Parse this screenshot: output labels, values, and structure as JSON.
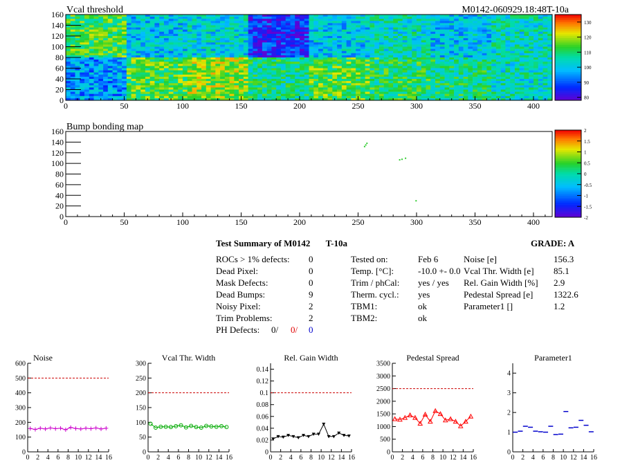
{
  "header": {
    "run_label": "M0142-060929.18:48T-10a"
  },
  "summary": {
    "title": "Test Summary of M0142",
    "temp_label": "T-10a",
    "grade": "GRADE:  A",
    "left": [
      {
        "label": "ROCs > 1% defects:",
        "value": "0"
      },
      {
        "label": "Dead Pixel:",
        "value": "0"
      },
      {
        "label": "Mask Defects:",
        "value": "0"
      },
      {
        "label": "Dead Bumps:",
        "value": "9"
      },
      {
        "label": "Noisy Pixel:",
        "value": "2"
      },
      {
        "label": "Trim Problems:",
        "value": "2"
      }
    ],
    "ph_defects": {
      "label": "PH Defects:",
      "v1": "0/",
      "v2": "0/",
      "v3": "0"
    },
    "middle": [
      {
        "label": "Tested on:",
        "value": "Feb 6"
      },
      {
        "label": "Temp. [°C]:",
        "value": "-10.0 +- 0.0"
      },
      {
        "label": "Trim / phCal:",
        "value": "yes / yes"
      },
      {
        "label": "Therm. cycl.:",
        "value": "yes"
      },
      {
        "label": "TBM1:",
        "value": "ok"
      },
      {
        "label": "TBM2:",
        "value": "ok"
      }
    ],
    "right": [
      {
        "label": "Noise [e]",
        "value": "156.3"
      },
      {
        "label": "Vcal Thr. Width [e]",
        "value": "85.1"
      },
      {
        "label": "Rel. Gain Width [%]",
        "value": "2.9"
      },
      {
        "label": "Pedestal Spread [e]",
        "value": "1322.6"
      },
      {
        "label": "Parameter1 []",
        "value": "1.2"
      }
    ]
  },
  "chart_data": [
    {
      "type": "heatmap",
      "title": "Vcal threshold",
      "xlim": [
        0,
        416
      ],
      "ylim": [
        0,
        160
      ],
      "xticks": [
        0,
        50,
        100,
        150,
        200,
        250,
        300,
        350,
        400
      ],
      "yticks": [
        0,
        20,
        40,
        60,
        80,
        100,
        120,
        140,
        160
      ],
      "colorbar_range": [
        78,
        135
      ],
      "colorbar_ticks": [
        80,
        90,
        100,
        110,
        120,
        130
      ],
      "roc_mean": {
        "top": [
          113,
          100,
          102,
          86,
          100,
          104,
          100,
          104,
          102
        ],
        "bottom": [
          95,
          114,
          118,
          108,
          114,
          110,
          108,
          104,
          92
        ]
      }
    },
    {
      "type": "heatmap",
      "title": "Bump bonding map",
      "xlim": [
        0,
        416
      ],
      "ylim": [
        0,
        160
      ],
      "xticks": [
        0,
        50,
        100,
        150,
        200,
        250,
        300,
        350,
        400
      ],
      "yticks": [
        0,
        20,
        40,
        60,
        80,
        100,
        120,
        140,
        160
      ],
      "colorbar_range": [
        -2,
        2
      ],
      "colorbar_ticks": [
        "-2",
        "-1.5",
        "-1",
        "-0.5",
        "0",
        "0.5",
        "1",
        "1.5",
        "2"
      ],
      "points": [
        [
          255,
          133
        ],
        [
          256,
          136
        ],
        [
          257,
          139
        ],
        [
          285,
          108
        ],
        [
          287,
          109
        ],
        [
          290,
          111
        ],
        [
          299,
          31
        ]
      ]
    },
    {
      "type": "line",
      "title": "Noise",
      "x": [
        0,
        1,
        2,
        3,
        4,
        5,
        6,
        7,
        8,
        9,
        10,
        11,
        12,
        13,
        14,
        15
      ],
      "values": [
        158,
        152,
        160,
        155,
        162,
        157,
        160,
        150,
        165,
        158,
        155,
        160,
        157,
        162,
        155,
        160
      ],
      "xlim": [
        0,
        16
      ],
      "ylim": [
        0,
        600
      ],
      "yticks": [
        0,
        100,
        200,
        300,
        400,
        500,
        600
      ],
      "threshold": 500,
      "color": "#cc00cc",
      "marker": "plus"
    },
    {
      "type": "line",
      "title": "Vcal Thr. Width",
      "x": [
        0,
        1,
        2,
        3,
        4,
        5,
        6,
        7,
        8,
        9,
        10,
        11,
        12,
        13,
        14,
        15
      ],
      "values": [
        95,
        82,
        85,
        85,
        84,
        87,
        90,
        83,
        88,
        84,
        82,
        88,
        86,
        85,
        87,
        84
      ],
      "xlim": [
        0,
        16
      ],
      "ylim": [
        0,
        300
      ],
      "yticks": [
        0,
        50,
        100,
        150,
        200,
        250,
        300
      ],
      "threshold": 200,
      "color": "#00aa00",
      "marker": "circle"
    },
    {
      "type": "line",
      "title": "Rel. Gain Width",
      "x": [
        0,
        1,
        2,
        3,
        4,
        5,
        6,
        7,
        8,
        9,
        10,
        11,
        12,
        13,
        14,
        15
      ],
      "values": [
        0.022,
        0.026,
        0.025,
        0.028,
        0.026,
        0.024,
        0.028,
        0.026,
        0.03,
        0.03,
        0.047,
        0.026,
        0.026,
        0.032,
        0.028,
        0.027
      ],
      "xlim": [
        0,
        16
      ],
      "ylim": [
        0,
        0.15
      ],
      "yticks": [
        0,
        0.02,
        0.04,
        0.06,
        0.08,
        0.1,
        0.12,
        0.14
      ],
      "threshold": 0.1,
      "color": "#000000",
      "marker": "triangle-down"
    },
    {
      "type": "line",
      "title": "Pedestal Spread",
      "x": [
        0,
        1,
        2,
        3,
        4,
        5,
        6,
        7,
        8,
        9,
        10,
        11,
        12,
        13,
        14,
        15
      ],
      "values": [
        1300,
        1280,
        1350,
        1450,
        1350,
        1120,
        1480,
        1200,
        1620,
        1500,
        1250,
        1300,
        1200,
        1020,
        1200,
        1400
      ],
      "xlim": [
        0,
        16
      ],
      "ylim": [
        0,
        3500
      ],
      "yticks": [
        0,
        500,
        1000,
        1500,
        2000,
        2500,
        3000,
        3500
      ],
      "threshold": 2500,
      "color": "#ff0000",
      "marker": "triangle"
    },
    {
      "type": "scatter",
      "title": "Parameter1",
      "x": [
        0,
        1,
        2,
        3,
        4,
        5,
        6,
        7,
        8,
        9,
        10,
        11,
        12,
        13,
        14,
        15
      ],
      "values": [
        1.0,
        1.05,
        1.3,
        1.25,
        1.05,
        1.02,
        1.0,
        1.3,
        0.88,
        0.9,
        2.05,
        1.22,
        1.25,
        1.6,
        1.35,
        1.02
      ],
      "xlim": [
        0,
        16
      ],
      "ylim": [
        0,
        4.5
      ],
      "yticks": [
        0,
        1,
        2,
        3,
        4
      ],
      "color": "#0000cc",
      "marker": "dash"
    }
  ]
}
